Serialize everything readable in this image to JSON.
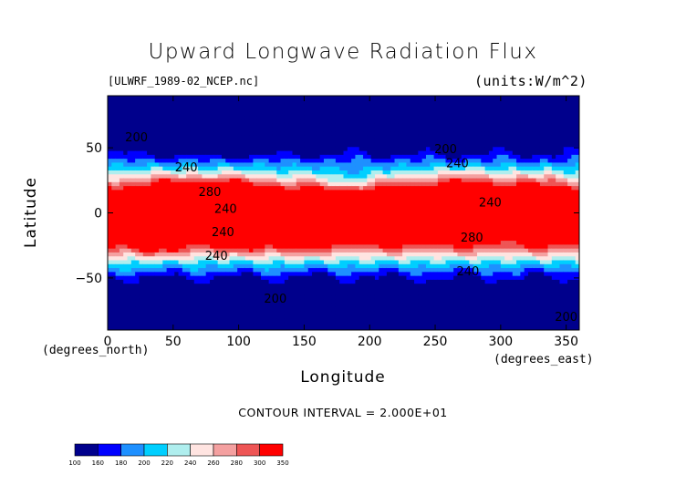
{
  "chart_data": {
    "type": "heatmap",
    "title": "Upward Longwave Radiation Flux",
    "source_label": "[ULWRF_1989-02_NCEP.nc]",
    "units_label": "(units:W/m^2)",
    "xlabel": "Longitude",
    "ylabel": "Latitude",
    "x_note": "(degrees_north)",
    "x_note2": "(degrees_east)",
    "contour_interval": "CONTOUR INTERVAL = 2.000E+01",
    "xlim": [
      0,
      360
    ],
    "ylim": [
      -90,
      90
    ],
    "x_ticks": [
      "0",
      "50",
      "100",
      "150",
      "200",
      "250",
      "300",
      "350"
    ],
    "x_tick_values": [
      0,
      50,
      100,
      150,
      200,
      250,
      300,
      350
    ],
    "y_ticks": [
      "50",
      "0",
      "−50"
    ],
    "y_tick_values": [
      50,
      0,
      -50
    ],
    "levels": [
      100,
      160,
      180,
      200,
      220,
      240,
      260,
      280,
      300,
      350
    ],
    "level_labels": [
      "100",
      "160",
      "180",
      "200",
      "220",
      "240",
      "260",
      "280",
      "300",
      "350"
    ],
    "colors": [
      "#00008c",
      "#0000ff",
      "#1e90ff",
      "#00cfff",
      "#afeeee",
      "#ffe4e1",
      "#f4a0a0",
      "#ee5555",
      "#ff0000"
    ],
    "contour_labels": [
      {
        "text": "200",
        "lon": 22,
        "lat": 55
      },
      {
        "text": "200",
        "lon": 128,
        "lat": -69
      },
      {
        "text": "200",
        "lon": 350,
        "lat": -83
      },
      {
        "text": "200",
        "lon": 258,
        "lat": 46
      },
      {
        "text": "240",
        "lon": 60,
        "lat": 32
      },
      {
        "text": "240",
        "lon": 90,
        "lat": 0
      },
      {
        "text": "240",
        "lon": 88,
        "lat": -18
      },
      {
        "text": "240",
        "lon": 83,
        "lat": -36
      },
      {
        "text": "240",
        "lon": 267,
        "lat": 35
      },
      {
        "text": "240",
        "lon": 292,
        "lat": 5
      },
      {
        "text": "240",
        "lon": 275,
        "lat": -48
      },
      {
        "text": "280",
        "lon": 78,
        "lat": 13
      },
      {
        "text": "280",
        "lon": 278,
        "lat": -22
      }
    ]
  }
}
